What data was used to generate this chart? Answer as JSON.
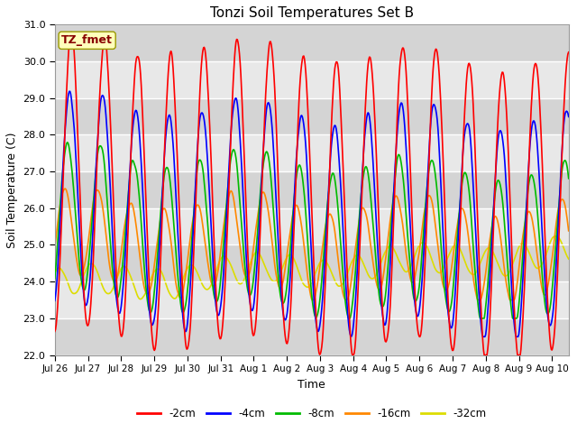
{
  "title": "Tonzi Soil Temperatures Set B",
  "xlabel": "Time",
  "ylabel": "Soil Temperature (C)",
  "ylim": [
    22.0,
    31.0
  ],
  "yticks": [
    22.0,
    23.0,
    24.0,
    25.0,
    26.0,
    27.0,
    28.0,
    29.0,
    30.0,
    31.0
  ],
  "colors": {
    "-2cm": "#ff0000",
    "-4cm": "#0000ff",
    "-8cm": "#00bb00",
    "-16cm": "#ff8800",
    "-32cm": "#dddd00"
  },
  "legend_labels": [
    "-2cm",
    "-4cm",
    "-8cm",
    "-16cm",
    "-32cm"
  ],
  "annotation_text": "TZ_fmet",
  "annotation_color": "#880000",
  "annotation_bg": "#ffffbb",
  "n_days": 15.5,
  "points_per_day": 48,
  "xtick_labels": [
    "Jul 26",
    "Jul 27",
    "Jul 28",
    "Jul 29",
    "Jul 30",
    "Jul 31",
    "Aug 1",
    "Aug 2",
    "Aug 3",
    "Aug 4",
    "Aug 5",
    "Aug 6",
    "Aug 7",
    "Aug 8",
    "Aug 9",
    "Aug 10"
  ],
  "line_width": 1.2,
  "fig_facecolor": "#ffffff",
  "ax_facecolor": "#e8e8e8",
  "band_light": "#e8e8e8",
  "band_dark": "#d4d4d4"
}
